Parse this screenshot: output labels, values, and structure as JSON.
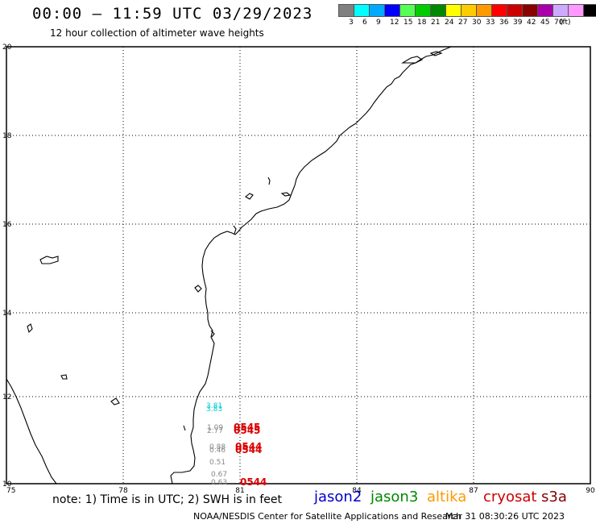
{
  "header": {
    "title": "00:00 – 11:59 UTC 03/29/2023",
    "subtitle": "12 hour collection of altimeter wave heights"
  },
  "legend": {
    "colors": [
      "#808080",
      "#00ffff",
      "#00aaff",
      "#0000ff",
      "#55ff55",
      "#00cc00",
      "#008800",
      "#ffff00",
      "#ffcc00",
      "#ff9900",
      "#ff0000",
      "#cc0000",
      "#880000",
      "#aa00aa",
      "#ccaaff",
      "#ff99ff",
      "#000000"
    ],
    "labels": [
      "3",
      "6",
      "9",
      "12",
      "15",
      "18",
      "21",
      "24",
      "27",
      "30",
      "33",
      "36",
      "39",
      "42",
      "45",
      "70",
      "(ft)"
    ]
  },
  "axes": {
    "x_ticks": [
      "75",
      "78",
      "81",
      "84",
      "87",
      "90"
    ],
    "y_ticks": [
      "20",
      "18",
      "16",
      "14",
      "12",
      "10"
    ]
  },
  "observations": [
    {
      "text": "3.81",
      "color": "#00cccc"
    },
    {
      "text": "3.83",
      "color": "#00cccc"
    },
    {
      "text": "1.09",
      "color": "#888888"
    },
    {
      "text": "2.77",
      "color": "#888888"
    },
    {
      "text": "0545",
      "color": "#dd0000"
    },
    {
      "text": "0545",
      "color": "#dd0000"
    },
    {
      "text": "0.88",
      "color": "#888888"
    },
    {
      "text": "0.46",
      "color": "#888888"
    },
    {
      "text": "0544",
      "color": "#dd0000"
    },
    {
      "text": "0544",
      "color": "#dd0000"
    },
    {
      "text": "0.51",
      "color": "#888888"
    },
    {
      "text": "0.67",
      "color": "#888888"
    },
    {
      "text": "0.63",
      "color": "#888888"
    },
    {
      "text": "0544",
      "color": "#dd0000"
    }
  ],
  "footer": {
    "note": "note: 1) Time is in UTC; 2) SWH is in feet",
    "satellites": [
      {
        "name": "jason2",
        "color": "#0000cc"
      },
      {
        "name": "jason3",
        "color": "#008800"
      },
      {
        "name": "altika",
        "color": "#ff9900"
      },
      {
        "name": "cryosat",
        "color": "#cc0000"
      },
      {
        "name": "s3a",
        "color": "#880000"
      }
    ],
    "credit": "NOAA/NESDIS Center for Satellite Applications and Research",
    "timestamp": "Mar 31 08:30:26 UTC 2023"
  }
}
